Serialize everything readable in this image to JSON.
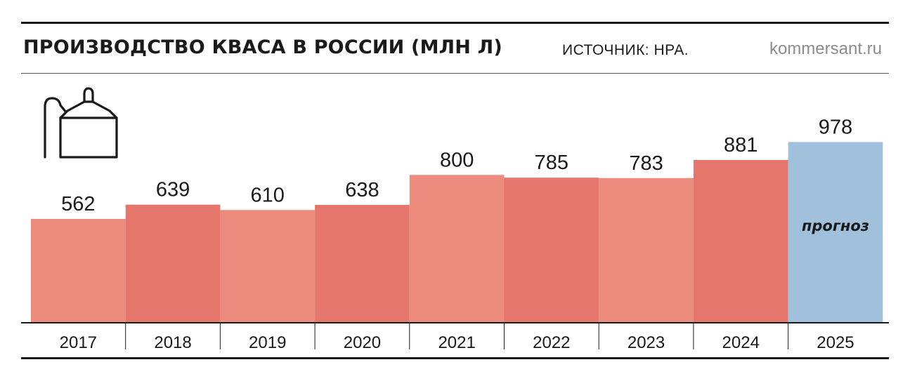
{
  "header": {
    "title": "ПРОИЗВОДСТВО КВАСА В РОССИИ (МЛН Л)",
    "source": "ИСТОЧНИК: НРА.",
    "brand": "kommersant.ru"
  },
  "icon": "kvass-tank-icon",
  "colors": {
    "bar_light": "#ee8b7f",
    "bar_dark": "#e5766b",
    "bar_forecast": "#a1c0dc",
    "text": "#1a1a1a"
  },
  "chart_data": {
    "type": "bar",
    "title": "ПРОИЗВОДСТВО КВАСА В РОССИИ (МЛН Л)",
    "categories": [
      "2017",
      "2018",
      "2019",
      "2020",
      "2021",
      "2022",
      "2023",
      "2024",
      "2025"
    ],
    "values": [
      562,
      639,
      610,
      638,
      800,
      785,
      783,
      881,
      978
    ],
    "forecast_index": 8,
    "forecast_label": "прогноз",
    "xlabel": "",
    "ylabel": "",
    "grid": false,
    "legend": "none"
  }
}
